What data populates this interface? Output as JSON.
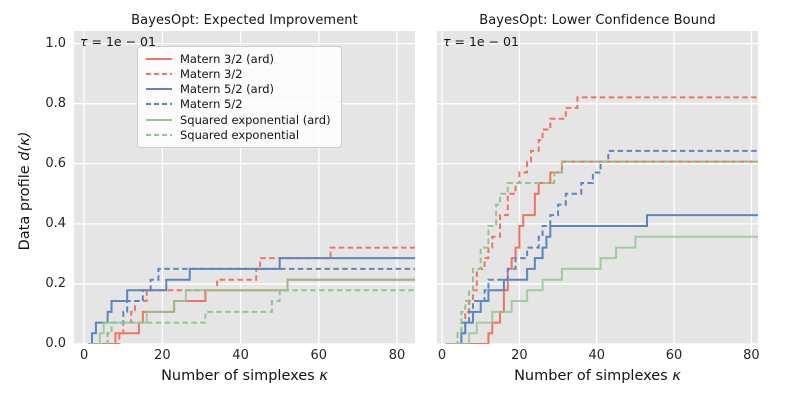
{
  "chart_data": {
    "type": "line",
    "step": "post",
    "xlabel_prefix": "Number of simplexes ",
    "xlabel_symbol": "κ",
    "ylabel_prefix": "Data profile ",
    "ylabel_math": "d(κ)",
    "annotation": {
      "tau": "τ",
      "rest": " = 1e − 01"
    },
    "xticks": [
      0,
      20,
      40,
      60,
      80
    ],
    "ytick_labels": [
      "0.0",
      "0.2",
      "0.4",
      "0.6",
      "0.8",
      "1.0"
    ],
    "yticks": [
      0.0,
      0.2,
      0.4,
      0.6,
      0.8,
      1.0
    ],
    "ylim": [
      0,
      1.042
    ],
    "grid": true,
    "legend_position": "upper center of left plot",
    "colors": {
      "salmon": "#ee7561",
      "blue": "#5c87be",
      "green": "#94c491",
      "plot_bg": "#e5e5e5",
      "grid": "#ffffff",
      "text": "#262626"
    },
    "legend": [
      {
        "label": "Matern 3/2 (ard)",
        "color": "salmon",
        "dashed": false
      },
      {
        "label": "Matern 3/2",
        "color": "salmon",
        "dashed": true
      },
      {
        "label": "Matern 5/2 (ard)",
        "color": "blue",
        "dashed": false
      },
      {
        "label": "Matern 5/2",
        "color": "blue",
        "dashed": true
      },
      {
        "label": "Squared exponential (ard)",
        "color": "green",
        "dashed": false
      },
      {
        "label": "Squared exponential",
        "color": "green",
        "dashed": true
      }
    ],
    "plots": [
      {
        "title": "BayesOpt: Expected Improvement",
        "xlim": [
          -2.6,
          84.6
        ],
        "series": [
          {
            "name": "Matern 3/2 (ard)",
            "color": "salmon",
            "dashed": false,
            "points": [
              [
                8,
                0.036
              ],
              [
                14,
                0.071
              ],
              [
                15,
                0.107
              ],
              [
                23,
                0.143
              ],
              [
                31,
                0.179
              ],
              [
                52,
                0.214
              ]
            ]
          },
          {
            "name": "Matern 3/2",
            "color": "salmon",
            "dashed": true,
            "points": [
              [
                9,
                0.036
              ],
              [
                10,
                0.071
              ],
              [
                12,
                0.107
              ],
              [
                13,
                0.143
              ],
              [
                16,
                0.179
              ],
              [
                34,
                0.214
              ],
              [
                44,
                0.25
              ],
              [
                45,
                0.286
              ],
              [
                63,
                0.321
              ]
            ]
          },
          {
            "name": "Matern 5/2 (ard)",
            "color": "blue",
            "dashed": false,
            "points": [
              [
                2,
                0.036
              ],
              [
                3,
                0.071
              ],
              [
                6,
                0.107
              ],
              [
                7,
                0.143
              ],
              [
                11,
                0.179
              ],
              [
                21,
                0.214
              ],
              [
                27,
                0.25
              ],
              [
                50,
                0.286
              ]
            ]
          },
          {
            "name": "Matern 5/2",
            "color": "blue",
            "dashed": true,
            "points": [
              [
                6,
                0.036
              ],
              [
                7,
                0.071
              ],
              [
                10,
                0.107
              ],
              [
                11,
                0.143
              ],
              [
                15,
                0.179
              ],
              [
                17,
                0.214
              ],
              [
                19,
                0.25
              ]
            ]
          },
          {
            "name": "Squared exponential (ard)",
            "color": "green",
            "dashed": false,
            "points": [
              [
                4,
                0.036
              ],
              [
                5,
                0.071
              ],
              [
                16,
                0.107
              ],
              [
                23,
                0.143
              ],
              [
                26,
                0.179
              ],
              [
                52,
                0.214
              ]
            ]
          },
          {
            "name": "Squared exponential",
            "color": "green",
            "dashed": true,
            "points": [
              [
                6,
                0.036
              ],
              [
                7,
                0.071
              ],
              [
                31,
                0.107
              ],
              [
                48,
                0.143
              ],
              [
                50,
                0.179
              ]
            ]
          }
        ]
      },
      {
        "title": "BayesOpt: Lower Confidence Bound",
        "xlim": [
          -1.3,
          81.7
        ],
        "series": [
          {
            "name": "Matern 3/2 (ard)",
            "color": "salmon",
            "dashed": false,
            "points": [
              [
                12,
                0.036
              ],
              [
                13,
                0.071
              ],
              [
                15,
                0.107
              ],
              [
                16,
                0.179
              ],
              [
                17,
                0.25
              ],
              [
                18,
                0.286
              ],
              [
                19,
                0.321
              ],
              [
                20,
                0.393
              ],
              [
                21,
                0.429
              ],
              [
                24,
                0.5
              ],
              [
                25,
                0.536
              ],
              [
                28,
                0.571
              ],
              [
                31,
                0.607
              ]
            ]
          },
          {
            "name": "Matern 3/2",
            "color": "salmon",
            "dashed": true,
            "points": [
              [
                5,
                0.036
              ],
              [
                6,
                0.107
              ],
              [
                7,
                0.143
              ],
              [
                8,
                0.179
              ],
              [
                9,
                0.25
              ],
              [
                11,
                0.286
              ],
              [
                12,
                0.321
              ],
              [
                13,
                0.357
              ],
              [
                15,
                0.429
              ],
              [
                17,
                0.5
              ],
              [
                19,
                0.536
              ],
              [
                20,
                0.571
              ],
              [
                22,
                0.607
              ],
              [
                23,
                0.643
              ],
              [
                25,
                0.679
              ],
              [
                26,
                0.714
              ],
              [
                28,
                0.75
              ],
              [
                32,
                0.786
              ],
              [
                35,
                0.821
              ]
            ]
          },
          {
            "name": "Matern 5/2 (ard)",
            "color": "blue",
            "dashed": false,
            "points": [
              [
                5,
                0.036
              ],
              [
                6,
                0.071
              ],
              [
                8,
                0.107
              ],
              [
                10,
                0.143
              ],
              [
                12,
                0.179
              ],
              [
                16,
                0.214
              ],
              [
                22,
                0.25
              ],
              [
                24,
                0.286
              ],
              [
                26,
                0.321
              ],
              [
                27,
                0.357
              ],
              [
                28,
                0.393
              ],
              [
                53,
                0.429
              ]
            ]
          },
          {
            "name": "Matern 5/2",
            "color": "blue",
            "dashed": true,
            "points": [
              [
                4,
                0.036
              ],
              [
                5,
                0.071
              ],
              [
                7,
                0.107
              ],
              [
                8,
                0.143
              ],
              [
                11,
                0.179
              ],
              [
                12,
                0.214
              ],
              [
                17,
                0.25
              ],
              [
                19,
                0.286
              ],
              [
                22,
                0.321
              ],
              [
                25,
                0.357
              ],
              [
                26,
                0.393
              ],
              [
                28,
                0.429
              ],
              [
                30,
                0.464
              ],
              [
                32,
                0.5
              ],
              [
                36,
                0.536
              ],
              [
                39,
                0.571
              ],
              [
                41,
                0.607
              ],
              [
                43,
                0.643
              ]
            ]
          },
          {
            "name": "Squared exponential (ard)",
            "color": "green",
            "dashed": false,
            "points": [
              [
                7,
                0.036
              ],
              [
                9,
                0.071
              ],
              [
                13,
                0.107
              ],
              [
                18,
                0.143
              ],
              [
                22,
                0.179
              ],
              [
                26,
                0.214
              ],
              [
                31,
                0.25
              ],
              [
                41,
                0.286
              ],
              [
                45,
                0.321
              ],
              [
                50,
                0.357
              ]
            ]
          },
          {
            "name": "Squared exponential",
            "color": "green",
            "dashed": true,
            "points": [
              [
                4,
                0.036
              ],
              [
                5,
                0.107
              ],
              [
                6,
                0.143
              ],
              [
                7,
                0.179
              ],
              [
                8,
                0.25
              ],
              [
                10,
                0.321
              ],
              [
                12,
                0.393
              ],
              [
                14,
                0.464
              ],
              [
                15,
                0.5
              ],
              [
                17,
                0.536
              ],
              [
                29,
                0.571
              ],
              [
                31,
                0.607
              ]
            ]
          }
        ]
      }
    ]
  }
}
